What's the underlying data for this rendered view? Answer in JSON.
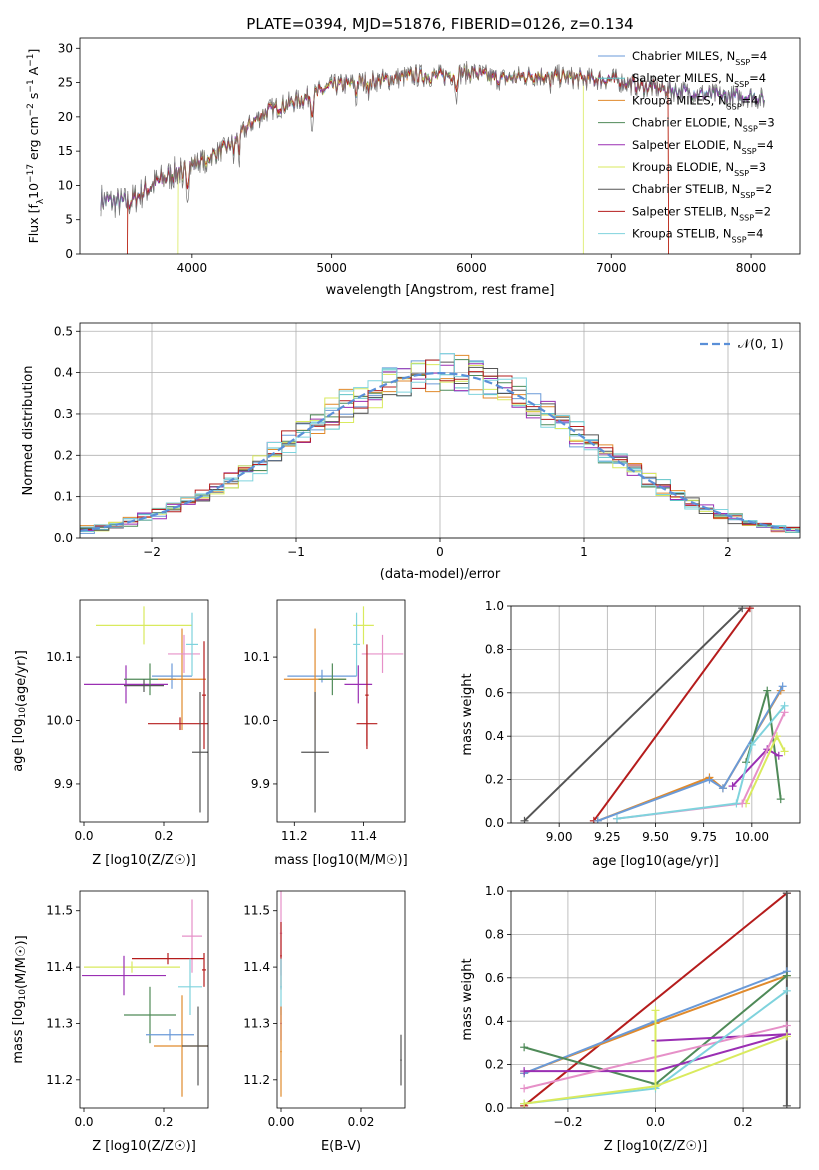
{
  "title": "PLATE=0394, MJD=51876, FIBERID=0126, z=0.134",
  "colors": {
    "Chabrier MILES": "#6a9ad8",
    "Salpeter MILES": "#5fc3c8",
    "Kroupa MILES": "#e08a2c",
    "Chabrier ELODIE": "#4f8a58",
    "Salpeter ELODIE": "#9a2fb3",
    "Kroupa ELODIE": "#d9ea5e",
    "Chabrier STELIB": "#555555",
    "Salpeter STELIB": "#b51c1c",
    "Kroupa STELIB": "#7fd3dd",
    "pink": "#e690c8",
    "normal": "#5a8fd8"
  },
  "chart_data": [
    {
      "type": "line",
      "panel": "spectrum",
      "xlabel": "wavelength [Angstrom, rest frame]",
      "ylabel": "Flux [f_λ 10^-17 erg cm^-2 s^-1 A^-1]",
      "xlim": [
        3200,
        8350
      ],
      "ylim": [
        0,
        31.5
      ],
      "xticks": [
        "4000",
        "5000",
        "6000",
        "7000",
        "8000"
      ],
      "yticks": [
        "0",
        "5",
        "10",
        "15",
        "20",
        "25",
        "30"
      ],
      "legend_position": "right",
      "legend": [
        {
          "label": "Chabrier MILES, N_SSP=4",
          "color_key": "Chabrier MILES"
        },
        {
          "label": "Salpeter MILES, N_SSP=4",
          "color_key": "Salpeter MILES"
        },
        {
          "label": "Kroupa MILES, N_SSP=4",
          "color_key": "Kroupa MILES"
        },
        {
          "label": "Chabrier ELODIE, N_SSP=3",
          "color_key": "Chabrier ELODIE"
        },
        {
          "label": "Salpeter ELODIE, N_SSP=4",
          "color_key": "Salpeter ELODIE"
        },
        {
          "label": "Kroupa ELODIE, N_SSP=3",
          "color_key": "Kroupa ELODIE"
        },
        {
          "label": "Chabrier STELIB, N_SSP=2",
          "color_key": "Chabrier STELIB"
        },
        {
          "label": "Salpeter STELIB, N_SSP=2",
          "color_key": "Salpeter STELIB"
        },
        {
          "label": "Kroupa STELIB, N_SSP=4",
          "color_key": "Kroupa STELIB"
        }
      ],
      "continuum": {
        "x": [
          3350,
          3450,
          3550,
          3650,
          3750,
          3850,
          3950,
          4050,
          4150,
          4250,
          4350,
          4450,
          4550,
          4700,
          4850,
          5000,
          5200,
          5400,
          5600,
          5800,
          6000,
          6200,
          6400,
          6600,
          6800,
          7000,
          7200,
          7400,
          7600,
          7800,
          8000,
          8100
        ],
        "y": [
          8.0,
          7.5,
          7.5,
          9.0,
          10.5,
          11.5,
          12.5,
          13.5,
          14.5,
          15.5,
          17.5,
          19.5,
          21.0,
          22.0,
          23.0,
          24.5,
          25.0,
          25.5,
          26.0,
          26.0,
          26.5,
          25.5,
          26.0,
          26.0,
          25.5,
          25.5,
          24.5,
          24.0,
          23.5,
          23.0,
          23.0,
          22.5
        ]
      },
      "model_edges": {
        "Kroupa MILES": [
          3540,
          7410
        ],
        "Salpeter STELIB": [
          3540,
          7410
        ],
        "Kroupa ELODIE": [
          3900,
          6800
        ]
      }
    },
    {
      "type": "histogram",
      "panel": "residuals",
      "xlabel": "(data-model)/error",
      "ylabel": "Normed distribution",
      "xlim": [
        -2.5,
        2.5
      ],
      "ylim": [
        0,
        0.52
      ],
      "xticks": [
        "−2",
        "−1",
        "0",
        "1",
        "2"
      ],
      "yticks": [
        "0.0",
        "0.1",
        "0.2",
        "0.3",
        "0.4",
        "0.5"
      ],
      "grid": true,
      "bin_edges_range": [
        -2.5,
        2.5
      ],
      "n_bins": 50,
      "reference_curve": {
        "label": "𝒩(0, 1)",
        "type": "normal",
        "mean": 0,
        "sigma": 1,
        "style": "dashed"
      },
      "legend_position": "top-right"
    },
    {
      "type": "scatter",
      "panel": "age_vs_Z",
      "xlabel": "Z [log10(Z/Z☉)]",
      "ylabel": "age [log10(age/yr)]",
      "xlim": [
        -0.01,
        0.31
      ],
      "ylim": [
        9.84,
        10.19
      ],
      "xticks": [
        "0.0",
        "0.2"
      ],
      "yticks": [
        "9.9",
        "10.0",
        "10.1"
      ],
      "points": [
        {
          "key": "Kroupa ELODIE",
          "x": 0.15,
          "y": 10.15,
          "xerr": 0.12,
          "yerr": 0.03
        },
        {
          "key": "Salpeter ELODIE",
          "x": 0.105,
          "y": 10.057,
          "xerr": 0.105,
          "yerr": 0.03
        },
        {
          "key": "Chabrier ELODIE",
          "x": 0.165,
          "y": 10.065,
          "xerr": 0.065,
          "yerr": 0.025
        },
        {
          "key": "Chabrier STELIB",
          "x": 0.15,
          "y": 10.055,
          "xerr": 0.05,
          "yerr": 0.01
        },
        {
          "key": "Chabrier MILES",
          "x": 0.22,
          "y": 10.07,
          "xerr": 0.05,
          "yerr": 0.02
        },
        {
          "key": "Kroupa MILES",
          "x": 0.245,
          "y": 10.065,
          "xerr": 0.06,
          "yerr": 0.08
        },
        {
          "key": "pink",
          "x": 0.25,
          "y": 10.105,
          "xerr": 0.04,
          "yerr": 0.03
        },
        {
          "key": "Kroupa STELIB",
          "x": 0.27,
          "y": 10.12,
          "xerr": 0.015,
          "yerr": 0.05
        },
        {
          "key": "Salpeter STELIB",
          "x": 0.24,
          "y": 9.995,
          "xerr": 0.08,
          "yerr": 0.01
        },
        {
          "key": "Salpeter STELIB",
          "x": 0.3,
          "y": 10.04,
          "xerr": 0.005,
          "yerr": 0.085
        },
        {
          "key": "Chabrier STELIB",
          "x": 0.29,
          "y": 9.95,
          "xerr": 0.02,
          "yerr": 0.095
        }
      ]
    },
    {
      "type": "scatter",
      "panel": "age_vs_mass",
      "xlabel": "mass [log10(M/M☉)]",
      "ylabel": "",
      "xlim": [
        11.15,
        11.52
      ],
      "ylim": [
        9.84,
        10.19
      ],
      "xticks": [
        "11.2",
        "11.4"
      ],
      "yticks": [
        "9.9",
        "10.0",
        "10.1"
      ],
      "points": [
        {
          "key": "Kroupa ELODIE",
          "x": 11.4,
          "y": 10.15,
          "xerr": 0.03,
          "yerr": 0.03
        },
        {
          "key": "pink",
          "x": 11.455,
          "y": 10.105,
          "xerr": 0.06,
          "yerr": 0.03
        },
        {
          "key": "Kroupa STELIB",
          "x": 11.38,
          "y": 10.12,
          "xerr": 0.01,
          "yerr": 0.05
        },
        {
          "key": "Chabrier MILES",
          "x": 11.28,
          "y": 10.07,
          "xerr": 0.1,
          "yerr": 0.01
        },
        {
          "key": "Kroupa MILES",
          "x": 11.26,
          "y": 10.065,
          "xerr": 0.09,
          "yerr": 0.08
        },
        {
          "key": "Chabrier ELODIE",
          "x": 11.31,
          "y": 10.065,
          "xerr": 0.04,
          "yerr": 0.025
        },
        {
          "key": "Salpeter ELODIE",
          "x": 11.385,
          "y": 10.057,
          "xerr": 0.04,
          "yerr": 0.03
        },
        {
          "key": "Salpeter STELIB",
          "x": 11.41,
          "y": 9.995,
          "xerr": 0.03,
          "yerr": 0.04
        },
        {
          "key": "Chabrier STELIB",
          "x": 11.26,
          "y": 9.95,
          "xerr": 0.04,
          "yerr": 0.095
        },
        {
          "key": "Salpeter STELIB",
          "x": 11.41,
          "y": 10.04,
          "xerr": 0.005,
          "yerr": 0.08
        }
      ]
    },
    {
      "type": "line",
      "panel": "mass_weight_vs_age",
      "xlabel": "age [log10(age/yr)]",
      "ylabel": "mass weight",
      "xlim": [
        8.75,
        10.25
      ],
      "ylim": [
        0,
        1.0
      ],
      "xticks": [
        "9.00",
        "9.25",
        "9.50",
        "9.75",
        "10.00"
      ],
      "yticks": [
        "0.0",
        "0.2",
        "0.4",
        "0.6",
        "0.8",
        "1.0"
      ],
      "grid": true,
      "series": [
        {
          "key": "Chabrier STELIB",
          "x": [
            8.82,
            9.95
          ],
          "y": [
            0.01,
            0.99
          ]
        },
        {
          "key": "Salpeter STELIB",
          "x": [
            9.18,
            9.99
          ],
          "y": [
            0.01,
            0.99
          ]
        },
        {
          "key": "Kroupa MILES",
          "x": [
            9.2,
            9.78,
            9.85,
            10.15
          ],
          "y": [
            0.01,
            0.21,
            0.16,
            0.61
          ]
        },
        {
          "key": "Chabrier MILES",
          "x": [
            9.2,
            9.78,
            9.85,
            10.16
          ],
          "y": [
            0.01,
            0.2,
            0.16,
            0.63
          ]
        },
        {
          "key": "Chabrier ELODIE",
          "x": [
            9.97,
            10.08,
            10.15
          ],
          "y": [
            0.28,
            0.61,
            0.11
          ]
        },
        {
          "key": "Salpeter ELODIE",
          "x": [
            9.9,
            10.08,
            10.14
          ],
          "y": [
            0.17,
            0.34,
            0.31
          ]
        },
        {
          "key": "Kroupa ELODIE",
          "x": [
            9.97,
            10.13,
            10.17
          ],
          "y": [
            0.09,
            0.4,
            0.33
          ]
        },
        {
          "key": "pink",
          "x": [
            9.3,
            9.95,
            10.17
          ],
          "y": [
            0.02,
            0.09,
            0.51
          ]
        },
        {
          "key": "Kroupa STELIB",
          "x": [
            9.3,
            9.92,
            10.0,
            10.17
          ],
          "y": [
            0.02,
            0.09,
            0.36,
            0.54
          ]
        }
      ]
    },
    {
      "type": "scatter",
      "panel": "mass_vs_Z",
      "xlabel": "Z [log10(Z/Z☉)]",
      "ylabel": "mass [log10(M/M☉)]",
      "xlim": [
        -0.01,
        0.31
      ],
      "ylim": [
        11.15,
        11.535
      ],
      "xticks": [
        "0.0",
        "0.2"
      ],
      "yticks": [
        "11.2",
        "11.3",
        "11.4",
        "11.5"
      ],
      "points": [
        {
          "key": "pink",
          "x": 0.27,
          "y": 11.455,
          "xerr": 0.025,
          "yerr": 0.065
        },
        {
          "key": "Salpeter STELIB",
          "x": 0.21,
          "y": 11.415,
          "xerr": 0.09,
          "yerr": 0.01
        },
        {
          "key": "Salpeter STELIB",
          "x": 0.3,
          "y": 11.395,
          "xerr": 0.005,
          "yerr": 0.03
        },
        {
          "key": "Kroupa ELODIE",
          "x": 0.12,
          "y": 11.4,
          "xerr": 0.12,
          "yerr": 0.01
        },
        {
          "key": "Salpeter ELODIE",
          "x": 0.1,
          "y": 11.385,
          "xerr": 0.105,
          "yerr": 0.035
        },
        {
          "key": "Kroupa STELIB",
          "x": 0.265,
          "y": 11.365,
          "xerr": 0.03,
          "yerr": 0.05
        },
        {
          "key": "Chabrier ELODIE",
          "x": 0.165,
          "y": 11.315,
          "xerr": 0.065,
          "yerr": 0.05
        },
        {
          "key": "Chabrier MILES",
          "x": 0.215,
          "y": 11.28,
          "xerr": 0.06,
          "yerr": 0.01
        },
        {
          "key": "Kroupa MILES",
          "x": 0.245,
          "y": 11.26,
          "xerr": 0.07,
          "yerr": 0.09
        },
        {
          "key": "Chabrier STELIB",
          "x": 0.285,
          "y": 11.26,
          "xerr": 0.04,
          "yerr": 0.07
        }
      ]
    },
    {
      "type": "scatter",
      "panel": "mass_vs_EBV",
      "xlabel": "E(B-V)",
      "ylabel": "",
      "xlim": [
        -0.001,
        0.031
      ],
      "ylim": [
        11.15,
        11.535
      ],
      "xticks": [
        "0.00",
        "0.02"
      ],
      "yticks": [
        "11.2",
        "11.3",
        "11.4",
        "11.5"
      ],
      "points": [
        {
          "key": "pink",
          "x": 0.0,
          "y": 11.46,
          "xerr": 0.0003,
          "yerr": 0.075
        },
        {
          "key": "Salpeter STELIB",
          "x": 0.0,
          "y": 11.42,
          "xerr": 0.0002,
          "yerr": 0.06
        },
        {
          "key": "Kroupa STELIB",
          "x": 0.0,
          "y": 11.365,
          "xerr": 0.0002,
          "yerr": 0.05
        },
        {
          "key": "Salpeter ELODIE",
          "x": 0.0,
          "y": 11.3,
          "xerr": 0.0002,
          "yerr": 0.03
        },
        {
          "key": "Kroupa MILES",
          "x": 0.0,
          "y": 11.25,
          "xerr": 0.0002,
          "yerr": 0.08
        },
        {
          "key": "Chabrier STELIB",
          "x": 0.03,
          "y": 11.235,
          "xerr": 0.0002,
          "yerr": 0.045
        }
      ]
    },
    {
      "type": "line",
      "panel": "mass_weight_vs_Z",
      "xlabel": "Z [log10(Z/Z☉)]",
      "ylabel": "mass weight",
      "xlim": [
        -0.33,
        0.33
      ],
      "ylim": [
        0,
        1.0
      ],
      "xticks": [
        "−0.2",
        "0.0",
        "0.2"
      ],
      "yticks": [
        "0.0",
        "0.2",
        "0.4",
        "0.6",
        "0.8",
        "1.0"
      ],
      "grid": true,
      "series": [
        {
          "key": "Salpeter STELIB",
          "x": [
            -0.3,
            0.3
          ],
          "y": [
            0.01,
            0.99
          ]
        },
        {
          "key": "Chabrier STELIB",
          "x": [
            0.3,
            0.3
          ],
          "y": [
            0.01,
            0.99
          ]
        },
        {
          "key": "Kroupa MILES",
          "x": [
            -0.3,
            0.0,
            0.3
          ],
          "y": [
            0.16,
            0.39,
            0.61
          ]
        },
        {
          "key": "Chabrier MILES",
          "x": [
            -0.3,
            0.0,
            0.3
          ],
          "y": [
            0.16,
            0.4,
            0.63
          ]
        },
        {
          "key": "Chabrier ELODIE",
          "x": [
            -0.3,
            0.0,
            0.3
          ],
          "y": [
            0.28,
            0.11,
            0.61
          ]
        },
        {
          "key": "Salpeter ELODIE",
          "x": [
            -0.3,
            0.0,
            0.3
          ],
          "y": [
            0.17,
            0.17,
            0.34
          ]
        },
        {
          "key": "Salpeter ELODIE",
          "x": [
            0.0,
            0.3
          ],
          "y": [
            0.31,
            0.34
          ]
        },
        {
          "key": "pink",
          "x": [
            -0.3,
            0.3
          ],
          "y": [
            0.09,
            0.38
          ]
        },
        {
          "key": "Kroupa STELIB",
          "x": [
            -0.3,
            0.0,
            0.3
          ],
          "y": [
            0.02,
            0.09,
            0.54
          ]
        },
        {
          "key": "Kroupa ELODIE",
          "x": [
            -0.3,
            0.0,
            0.3
          ],
          "y": [
            0.02,
            0.1,
            0.33
          ]
        },
        {
          "key": "Kroupa ELODIE",
          "x": [
            0.0,
            0.0
          ],
          "y": [
            0.1,
            0.45
          ]
        }
      ]
    }
  ]
}
